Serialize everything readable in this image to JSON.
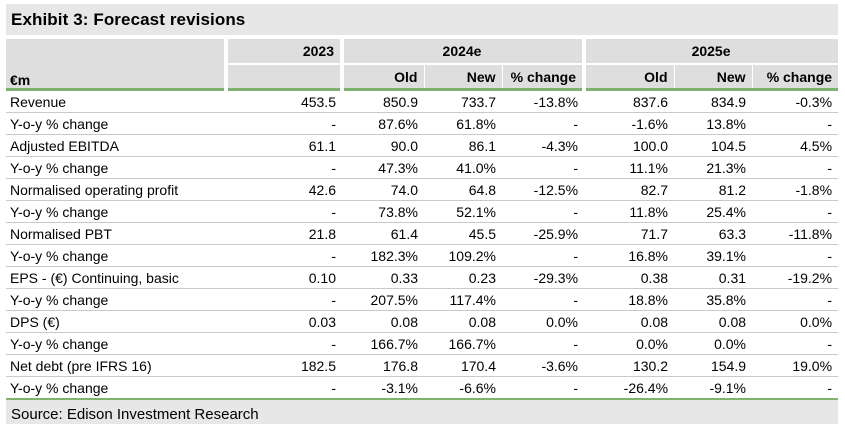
{
  "title": "Exhibit 3: Forecast revisions",
  "source": "Source: Edison Investment Research",
  "colors": {
    "accent_green": "#7EB26E",
    "header_bg": "#DEDEDE",
    "title_bg": "#E7E7E7",
    "row_line": "#C9C9C9"
  },
  "table": {
    "header": {
      "unit": "€m",
      "year": "2023",
      "group_2024": "2024e",
      "group_2025": "2025e",
      "sub": [
        "Old",
        "New",
        "% change"
      ]
    },
    "rows": [
      {
        "label": "Revenue",
        "values": [
          "453.5",
          "850.9",
          "733.7",
          "-13.8%",
          "837.6",
          "834.9",
          "-0.3%"
        ]
      },
      {
        "label": "Y-o-y % change",
        "values": [
          "-",
          "87.6%",
          "61.8%",
          "-",
          "-1.6%",
          "13.8%",
          "-"
        ]
      },
      {
        "label": "Adjusted EBITDA",
        "values": [
          "61.1",
          "90.0",
          "86.1",
          "-4.3%",
          "100.0",
          "104.5",
          "4.5%"
        ]
      },
      {
        "label": "Y-o-y % change",
        "values": [
          "-",
          "47.3%",
          "41.0%",
          "-",
          "11.1%",
          "21.3%",
          "-"
        ]
      },
      {
        "label": "Normalised operating profit",
        "values": [
          "42.6",
          "74.0",
          "64.8",
          "-12.5%",
          "82.7",
          "81.2",
          "-1.8%"
        ]
      },
      {
        "label": "Y-o-y % change",
        "values": [
          "-",
          "73.8%",
          "52.1%",
          "-",
          "11.8%",
          "25.4%",
          "-"
        ]
      },
      {
        "label": "Normalised PBT",
        "values": [
          "21.8",
          "61.4",
          "45.5",
          "-25.9%",
          "71.7",
          "63.3",
          "-11.8%"
        ]
      },
      {
        "label": "Y-o-y % change",
        "values": [
          "-",
          "182.3%",
          "109.2%",
          "-",
          "16.8%",
          "39.1%",
          "-"
        ]
      },
      {
        "label": "EPS - (€) Continuing, basic",
        "values": [
          "0.10",
          "0.33",
          "0.23",
          "-29.3%",
          "0.38",
          "0.31",
          "-19.2%"
        ]
      },
      {
        "label": "Y-o-y % change",
        "values": [
          "-",
          "207.5%",
          "117.4%",
          "-",
          "18.8%",
          "35.8%",
          "-"
        ]
      },
      {
        "label": "DPS (€)",
        "values": [
          "0.03",
          "0.08",
          "0.08",
          "0.0%",
          "0.08",
          "0.08",
          "0.0%"
        ]
      },
      {
        "label": "Y-o-y % change",
        "values": [
          "-",
          "166.7%",
          "166.7%",
          "-",
          "0.0%",
          "0.0%",
          "-"
        ]
      },
      {
        "label": "Net debt (pre IFRS 16)",
        "values": [
          "182.5",
          "176.8",
          "170.4",
          "-3.6%",
          "130.2",
          "154.9",
          "19.0%"
        ]
      },
      {
        "label": "Y-o-y % change",
        "values": [
          "-",
          "-3.1%",
          "-6.6%",
          "-",
          "-26.4%",
          "-9.1%",
          "-"
        ]
      }
    ]
  }
}
